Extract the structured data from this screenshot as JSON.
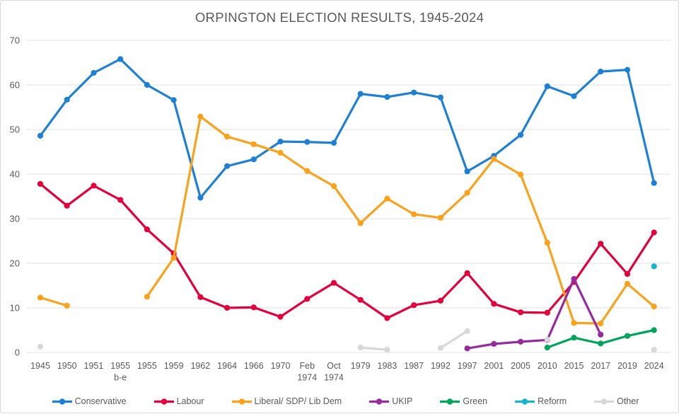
{
  "chart_data": {
    "type": "line",
    "title": "ORPINGTON ELECTION RESULTS, 1945-2024",
    "xlabel": "",
    "ylabel": "",
    "ylim": [
      0,
      70
    ],
    "y_ticks": [
      0,
      10,
      20,
      30,
      40,
      50,
      60,
      70
    ],
    "grid": true,
    "legend_position": "bottom",
    "categories": [
      "1945",
      "1950",
      "1951",
      "1955 b-e",
      "1955",
      "1959",
      "1962",
      "1964",
      "1966",
      "1970",
      "Feb 1974",
      "Oct 1974",
      "1979",
      "1983",
      "1987",
      "1992",
      "1997",
      "2001",
      "2005",
      "2010",
      "2015",
      "2017",
      "2019",
      "2024"
    ],
    "categories_display": [
      [
        "1945"
      ],
      [
        "1950"
      ],
      [
        "1951"
      ],
      [
        "1955",
        "b-e"
      ],
      [
        "1955"
      ],
      [
        "1959"
      ],
      [
        "1962"
      ],
      [
        "1964"
      ],
      [
        "1966"
      ],
      [
        "1970"
      ],
      [
        "Feb",
        "1974"
      ],
      [
        "Oct",
        "1974"
      ],
      [
        "1979"
      ],
      [
        "1983"
      ],
      [
        "1987"
      ],
      [
        "1992"
      ],
      [
        "1997"
      ],
      [
        "2001"
      ],
      [
        "2005"
      ],
      [
        "2010"
      ],
      [
        "2015"
      ],
      [
        "2017"
      ],
      [
        "2019"
      ],
      [
        "2024"
      ]
    ],
    "series": [
      {
        "name": "Conservative",
        "color": "#1D80D4",
        "values": [
          48.6,
          56.7,
          62.7,
          65.8,
          60.0,
          56.6,
          34.7,
          41.8,
          43.3,
          47.3,
          47.2,
          47.0,
          58.0,
          57.3,
          58.3,
          57.2,
          40.6,
          44.1,
          48.8,
          59.7,
          57.5,
          63.0,
          63.4,
          38.0
        ]
      },
      {
        "name": "Labour",
        "color": "#E4003B",
        "values": [
          37.8,
          32.9,
          37.4,
          34.2,
          27.6,
          22.2,
          12.4,
          10.0,
          10.1,
          8.0,
          12.0,
          15.6,
          11.8,
          7.7,
          10.6,
          11.6,
          17.8,
          10.9,
          9.0,
          8.9,
          15.8,
          24.4,
          17.6,
          26.9
        ]
      },
      {
        "name": "Liberal/ SDP/ Lib Dem",
        "color": "#FAA21B",
        "values": [
          12.3,
          10.5,
          null,
          null,
          12.5,
          21.2,
          52.9,
          48.4,
          46.7,
          44.8,
          40.7,
          37.3,
          29.0,
          34.5,
          31.0,
          30.2,
          35.8,
          43.4,
          39.9,
          24.6,
          6.6,
          6.5,
          15.4,
          10.3
        ]
      },
      {
        "name": "UKIP",
        "color": "#952B9D",
        "values": [
          null,
          null,
          null,
          null,
          null,
          null,
          null,
          null,
          null,
          null,
          null,
          null,
          null,
          null,
          null,
          null,
          0.9,
          1.9,
          2.4,
          2.8,
          16.5,
          4.0,
          null,
          null
        ]
      },
      {
        "name": "Green",
        "color": "#00A45A",
        "values": [
          null,
          null,
          null,
          null,
          null,
          null,
          null,
          null,
          null,
          null,
          null,
          null,
          null,
          null,
          null,
          null,
          null,
          null,
          null,
          1.1,
          3.3,
          2.0,
          3.7,
          5.0
        ]
      },
      {
        "name": "Reform",
        "color": "#16B4CE",
        "values": [
          null,
          null,
          null,
          null,
          null,
          null,
          null,
          null,
          null,
          null,
          null,
          null,
          null,
          null,
          null,
          null,
          null,
          null,
          null,
          null,
          null,
          null,
          null,
          19.3
        ]
      },
      {
        "name": "Other",
        "color": "#D8D8D8",
        "values": [
          1.3,
          null,
          null,
          null,
          null,
          null,
          null,
          null,
          null,
          null,
          null,
          null,
          1.1,
          0.6,
          null,
          1.0,
          4.8,
          null,
          null,
          2.9,
          null,
          null,
          null,
          0.6
        ]
      }
    ]
  },
  "styles": {
    "text_color": "#595959",
    "grid_color": "#E1E1E1",
    "background": "#FFFFFF",
    "border_color": "#D9D9D9"
  }
}
